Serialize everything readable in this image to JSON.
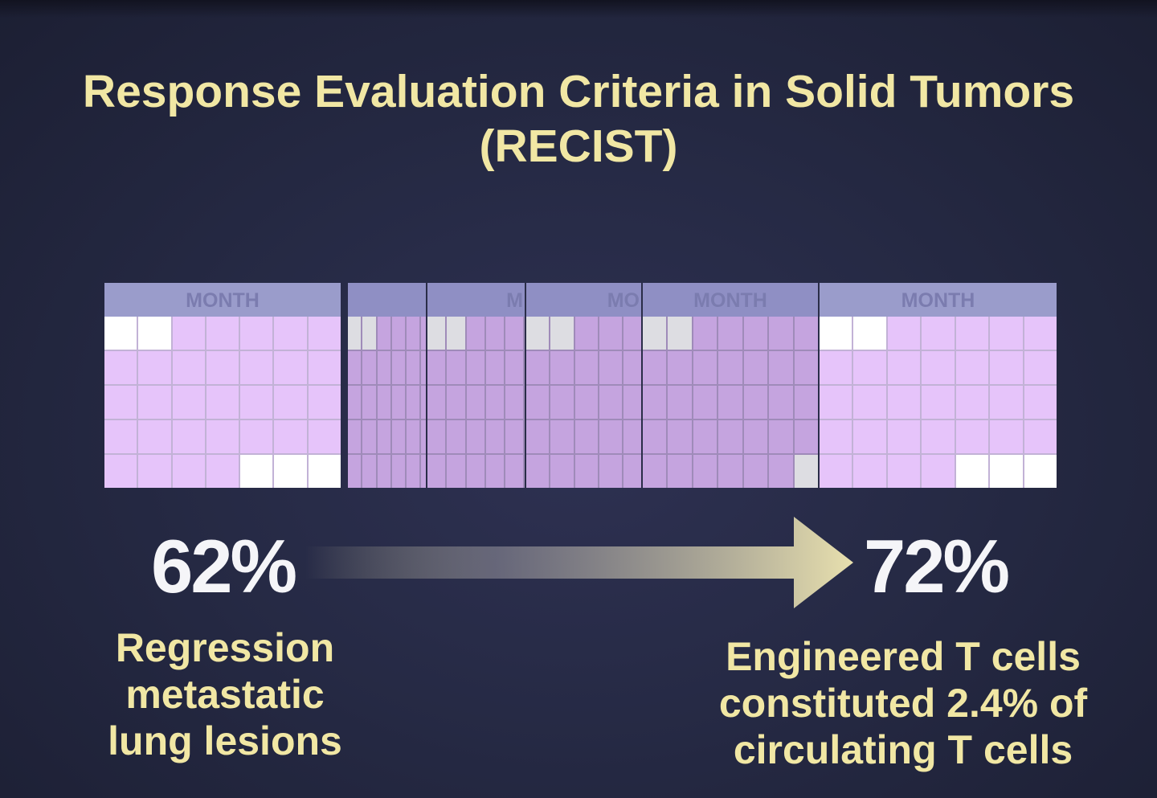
{
  "title": {
    "line1": "Response Evaluation Criteria in Solid Tumors",
    "line2": "(RECIST)"
  },
  "calendars": [
    {
      "header": "MONTH",
      "cells": [
        "w",
        "w",
        "p",
        "p",
        "p",
        "p",
        "p",
        "p",
        "p",
        "p",
        "p",
        "p",
        "p",
        "p",
        "p",
        "p",
        "p",
        "p",
        "p",
        "p",
        "p",
        "p",
        "p",
        "p",
        "p",
        "p",
        "p",
        "p",
        "p",
        "p",
        "p",
        "p",
        "w",
        "w",
        "w"
      ]
    },
    {
      "header": "",
      "cells": [
        "w",
        "w",
        "p",
        "p",
        "p",
        "p",
        "p",
        "p",
        "p",
        "p",
        "p",
        "p",
        "p",
        "p",
        "p",
        "p",
        "p",
        "p",
        "p",
        "p",
        "p",
        "p",
        "p",
        "p",
        "p",
        "p",
        "p",
        "p",
        "p",
        "p",
        "p",
        "p",
        "p",
        "p",
        "p"
      ]
    },
    {
      "header": "M",
      "cells": [
        "w",
        "w",
        "p",
        "p",
        "p",
        "p",
        "p",
        "p",
        "p",
        "p",
        "p",
        "p",
        "p",
        "p",
        "p",
        "p",
        "p",
        "p",
        "p",
        "p",
        "p",
        "p",
        "p",
        "p",
        "p",
        "p",
        "p",
        "p",
        "p",
        "p",
        "p",
        "p",
        "p",
        "p",
        "p"
      ]
    },
    {
      "header": "MO",
      "cells": [
        "w",
        "w",
        "p",
        "p",
        "p",
        "p",
        "p",
        "p",
        "p",
        "p",
        "p",
        "p",
        "p",
        "p",
        "p",
        "p",
        "p",
        "p",
        "p",
        "p",
        "p",
        "p",
        "p",
        "p",
        "p",
        "p",
        "p",
        "p",
        "p",
        "p",
        "p",
        "p",
        "p",
        "p",
        "p"
      ]
    },
    {
      "header": "MONTH",
      "cells": [
        "w",
        "w",
        "p",
        "p",
        "p",
        "p",
        "p",
        "p",
        "p",
        "p",
        "p",
        "p",
        "p",
        "p",
        "p",
        "p",
        "p",
        "p",
        "p",
        "p",
        "p",
        "p",
        "p",
        "p",
        "p",
        "p",
        "p",
        "p",
        "p",
        "p",
        "p",
        "p",
        "p",
        "p",
        "w"
      ]
    },
    {
      "header": "MONTH",
      "cells": [
        "w",
        "w",
        "p",
        "p",
        "p",
        "p",
        "p",
        "p",
        "p",
        "p",
        "p",
        "p",
        "p",
        "p",
        "p",
        "p",
        "p",
        "p",
        "p",
        "p",
        "p",
        "p",
        "p",
        "p",
        "p",
        "p",
        "p",
        "p",
        "p",
        "p",
        "p",
        "p",
        "w",
        "w",
        "w"
      ]
    }
  ],
  "left": {
    "percent": "62%",
    "caption": [
      "Regression",
      "metastatic",
      "lung lesions"
    ]
  },
  "right": {
    "percent": "72%",
    "caption": [
      "Engineered T cells",
      "constituted 2.4% of",
      "circulating T cells"
    ]
  },
  "colors": {
    "accent_text": "#f1e7a4",
    "calendar_pink": "#e6c4fa",
    "calendar_header": "#9a9ccb"
  }
}
